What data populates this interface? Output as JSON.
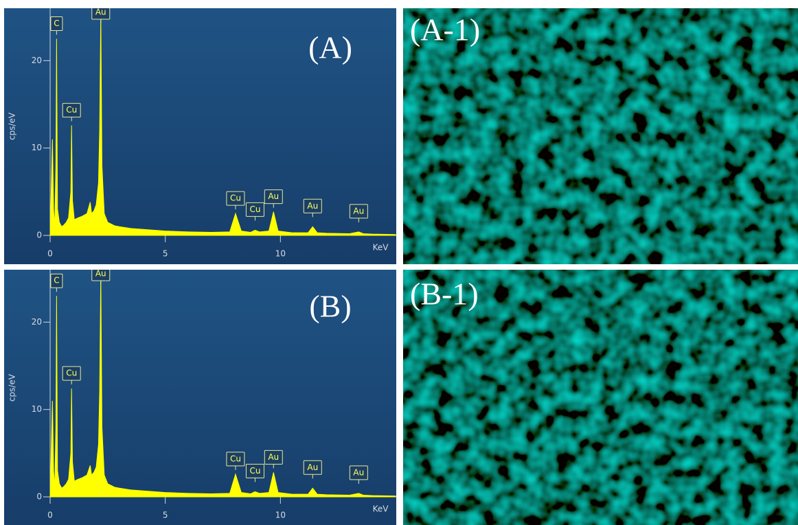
{
  "chart_data": [
    {
      "type": "area",
      "title": "(A)",
      "x_label": "KeV",
      "y_label": "cps/eV",
      "color": "#ffff00",
      "x": [
        0,
        0.1,
        0.15,
        0.2,
        0.25,
        0.28,
        0.32,
        0.4,
        0.5,
        0.6,
        0.7,
        0.8,
        0.9,
        0.93,
        0.97,
        1.05,
        1.2,
        1.4,
        1.6,
        1.74,
        1.8,
        1.9,
        2.0,
        2.1,
        2.15,
        2.2,
        2.25,
        2.35,
        2.5,
        2.8,
        3.0,
        3.5,
        4,
        5,
        6,
        7,
        7.8,
        8.05,
        8.3,
        8.7,
        8.9,
        9.1,
        9.5,
        9.7,
        9.9,
        10.5,
        11.2,
        11.4,
        11.6,
        12,
        13,
        13.4,
        13.6,
        14,
        15
      ],
      "values": [
        0,
        11,
        3,
        1,
        8,
        22.5,
        3,
        1.5,
        1,
        1.2,
        1.5,
        2,
        5,
        12.6,
        4,
        1.8,
        2,
        2.2,
        2.5,
        3.8,
        2.5,
        2.8,
        3.5,
        6,
        12,
        25.5,
        8,
        2.5,
        1.5,
        1.1,
        1,
        0.8,
        0.7,
        0.5,
        0.4,
        0.35,
        0.4,
        2.5,
        0.5,
        0.35,
        0.6,
        0.4,
        0.5,
        2.7,
        0.5,
        0.3,
        0.3,
        1,
        0.3,
        0.25,
        0.2,
        0.4,
        0.2,
        0.15,
        0.1
      ],
      "xlim": [
        0,
        15
      ],
      "ylim": [
        0,
        26
      ],
      "xticks": [
        0,
        5,
        10
      ],
      "yticks": [
        0,
        10,
        20
      ],
      "peaks": [
        {
          "label": "C",
          "x": 0.28
        },
        {
          "label": "Cu",
          "x": 0.93
        },
        {
          "label": "Au",
          "x": 2.2
        },
        {
          "label": "Cu",
          "x": 8.05
        },
        {
          "label": "Cu",
          "x": 8.9
        },
        {
          "label": "Au",
          "x": 9.7
        },
        {
          "label": "Au",
          "x": 11.4
        },
        {
          "label": "Au",
          "x": 13.4
        }
      ]
    },
    {
      "type": "area",
      "title": "(B)",
      "x_label": "KeV",
      "y_label": "cps/eV",
      "color": "#ffff00",
      "x": [
        0,
        0.1,
        0.15,
        0.2,
        0.25,
        0.28,
        0.32,
        0.4,
        0.5,
        0.6,
        0.7,
        0.8,
        0.9,
        0.93,
        0.97,
        1.05,
        1.2,
        1.4,
        1.6,
        1.74,
        1.8,
        1.9,
        2.0,
        2.1,
        2.15,
        2.2,
        2.25,
        2.35,
        2.5,
        2.8,
        3.0,
        3.5,
        4,
        5,
        6,
        7,
        7.8,
        8.05,
        8.3,
        8.7,
        8.9,
        9.1,
        9.5,
        9.7,
        9.9,
        10.5,
        11.2,
        11.4,
        11.6,
        12,
        13,
        13.4,
        13.6,
        14,
        15
      ],
      "values": [
        0,
        11,
        3,
        1,
        8,
        23,
        3,
        1.5,
        1,
        1.2,
        1.5,
        2,
        5,
        12.4,
        4,
        1.8,
        2,
        2.2,
        2.5,
        3.6,
        2.5,
        2.8,
        3.4,
        6,
        12,
        25.5,
        8,
        2.5,
        1.5,
        1.1,
        1,
        0.8,
        0.7,
        0.5,
        0.4,
        0.35,
        0.4,
        2.6,
        0.5,
        0.35,
        0.6,
        0.4,
        0.5,
        2.8,
        0.5,
        0.3,
        0.3,
        1,
        0.3,
        0.25,
        0.2,
        0.4,
        0.2,
        0.15,
        0.1
      ],
      "xlim": [
        0,
        15
      ],
      "ylim": [
        0,
        26
      ],
      "xticks": [
        0,
        5,
        10
      ],
      "yticks": [
        0,
        10,
        20
      ],
      "peaks": [
        {
          "label": "C",
          "x": 0.28
        },
        {
          "label": "Cu",
          "x": 0.93
        },
        {
          "label": "Au",
          "x": 2.2
        },
        {
          "label": "Cu",
          "x": 8.05
        },
        {
          "label": "Cu",
          "x": 8.9
        },
        {
          "label": "Au",
          "x": 9.7
        },
        {
          "label": "Au",
          "x": 11.4
        },
        {
          "label": "Au",
          "x": 13.4
        }
      ]
    }
  ],
  "images": [
    {
      "label": "(A-1)"
    },
    {
      "label": "(B-1)"
    }
  ]
}
